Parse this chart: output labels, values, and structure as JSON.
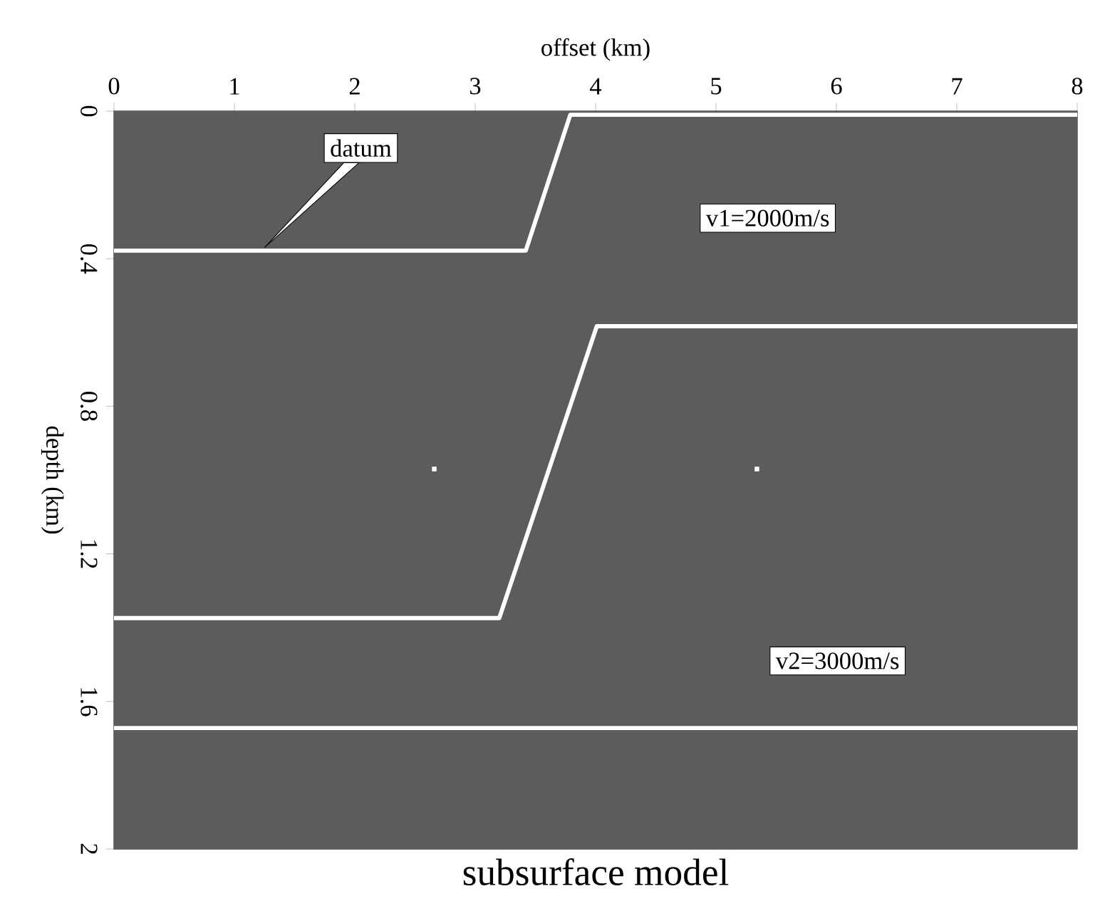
{
  "chart_data": {
    "type": "line",
    "title": "subsurface model",
    "xlabel": "offset (km)",
    "ylabel": "depth (km)",
    "annotations": [
      "datum",
      "v1=2000m/s",
      "v2=3000m/s"
    ],
    "series": [
      {
        "color": "#ffffff",
        "x": [
          0,
          3.42,
          3.79,
          8
        ],
        "values": [
          0.378,
          0.378,
          0.01,
          0.01
        ]
      },
      {
        "color": "#ffffff",
        "x": [
          0,
          3.2,
          4.01,
          8
        ],
        "values": [
          1.374,
          1.374,
          0.583,
          0.583
        ]
      },
      {
        "color": "#ffffff",
        "x": [
          0,
          8
        ],
        "values": [
          1.672,
          1.672
        ]
      },
      {
        "type": "scatter",
        "marker": "square",
        "color": "#ffffff",
        "x": [
          2.66,
          5.34
        ],
        "values": [
          0.97,
          0.97
        ]
      }
    ],
    "xlim": [
      0,
      8
    ],
    "xticks": [
      0,
      1,
      2,
      3,
      4,
      5,
      6,
      7,
      8
    ],
    "ylim": [
      2,
      0
    ],
    "yticks": [
      0,
      0.4,
      0.8,
      1.2,
      1.6,
      2
    ],
    "grid": false,
    "line_style": "solid"
  }
}
